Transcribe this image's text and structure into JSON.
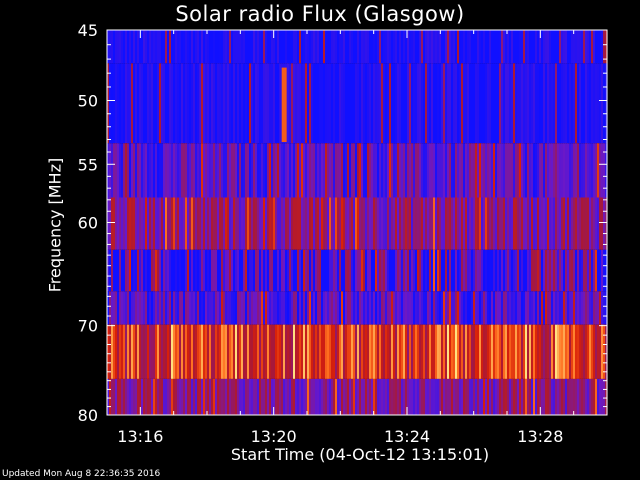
{
  "chart_data": {
    "type": "heatmap",
    "title": "Solar radio Flux (Glasgow)",
    "xlabel": "Start Time (04-Oct-12 13:15:01)",
    "ylabel": "Frequency [MHz]",
    "x_ticks": [
      "13:16",
      "13:20",
      "13:24",
      "13:28"
    ],
    "x_tick_minutes": [
      1,
      5,
      9,
      13
    ],
    "x_range_minutes": [
      0,
      15
    ],
    "y_ticks": [
      45,
      50,
      55,
      60,
      70,
      80
    ],
    "y_range": [
      45,
      80
    ],
    "y_scale": "log",
    "colormap": [
      "#1010ff",
      "#6a18c8",
      "#a81838",
      "#d82008",
      "#ff7020",
      "#ffe080"
    ],
    "bands": [
      {
        "f0": 45,
        "f1": 47.3,
        "level": 0.02,
        "noise": 0.08
      },
      {
        "f0": 47.3,
        "f1": 53.3,
        "level": 0.03,
        "noise": 0.07
      },
      {
        "f0": 53.3,
        "f1": 57.8,
        "level": 0.16,
        "noise": 0.16
      },
      {
        "f0": 57.8,
        "f1": 62.5,
        "level": 0.3,
        "noise": 0.18
      },
      {
        "f0": 62.5,
        "f1": 66.5,
        "level": 0.1,
        "noise": 0.3
      },
      {
        "f0": 66.5,
        "f1": 69.9,
        "level": 0.14,
        "noise": 0.18
      },
      {
        "f0": 69.9,
        "f1": 75.8,
        "level": 0.62,
        "noise": 0.3
      },
      {
        "f0": 75.8,
        "f1": 80,
        "level": 0.28,
        "noise": 0.16
      }
    ],
    "events": [
      {
        "minute": 5.3,
        "f0": 47.6,
        "f1": 53.2,
        "level": 0.75
      }
    ]
  },
  "footer": {
    "updated": "Updated Mon Aug  8 22:36:35 2016"
  }
}
